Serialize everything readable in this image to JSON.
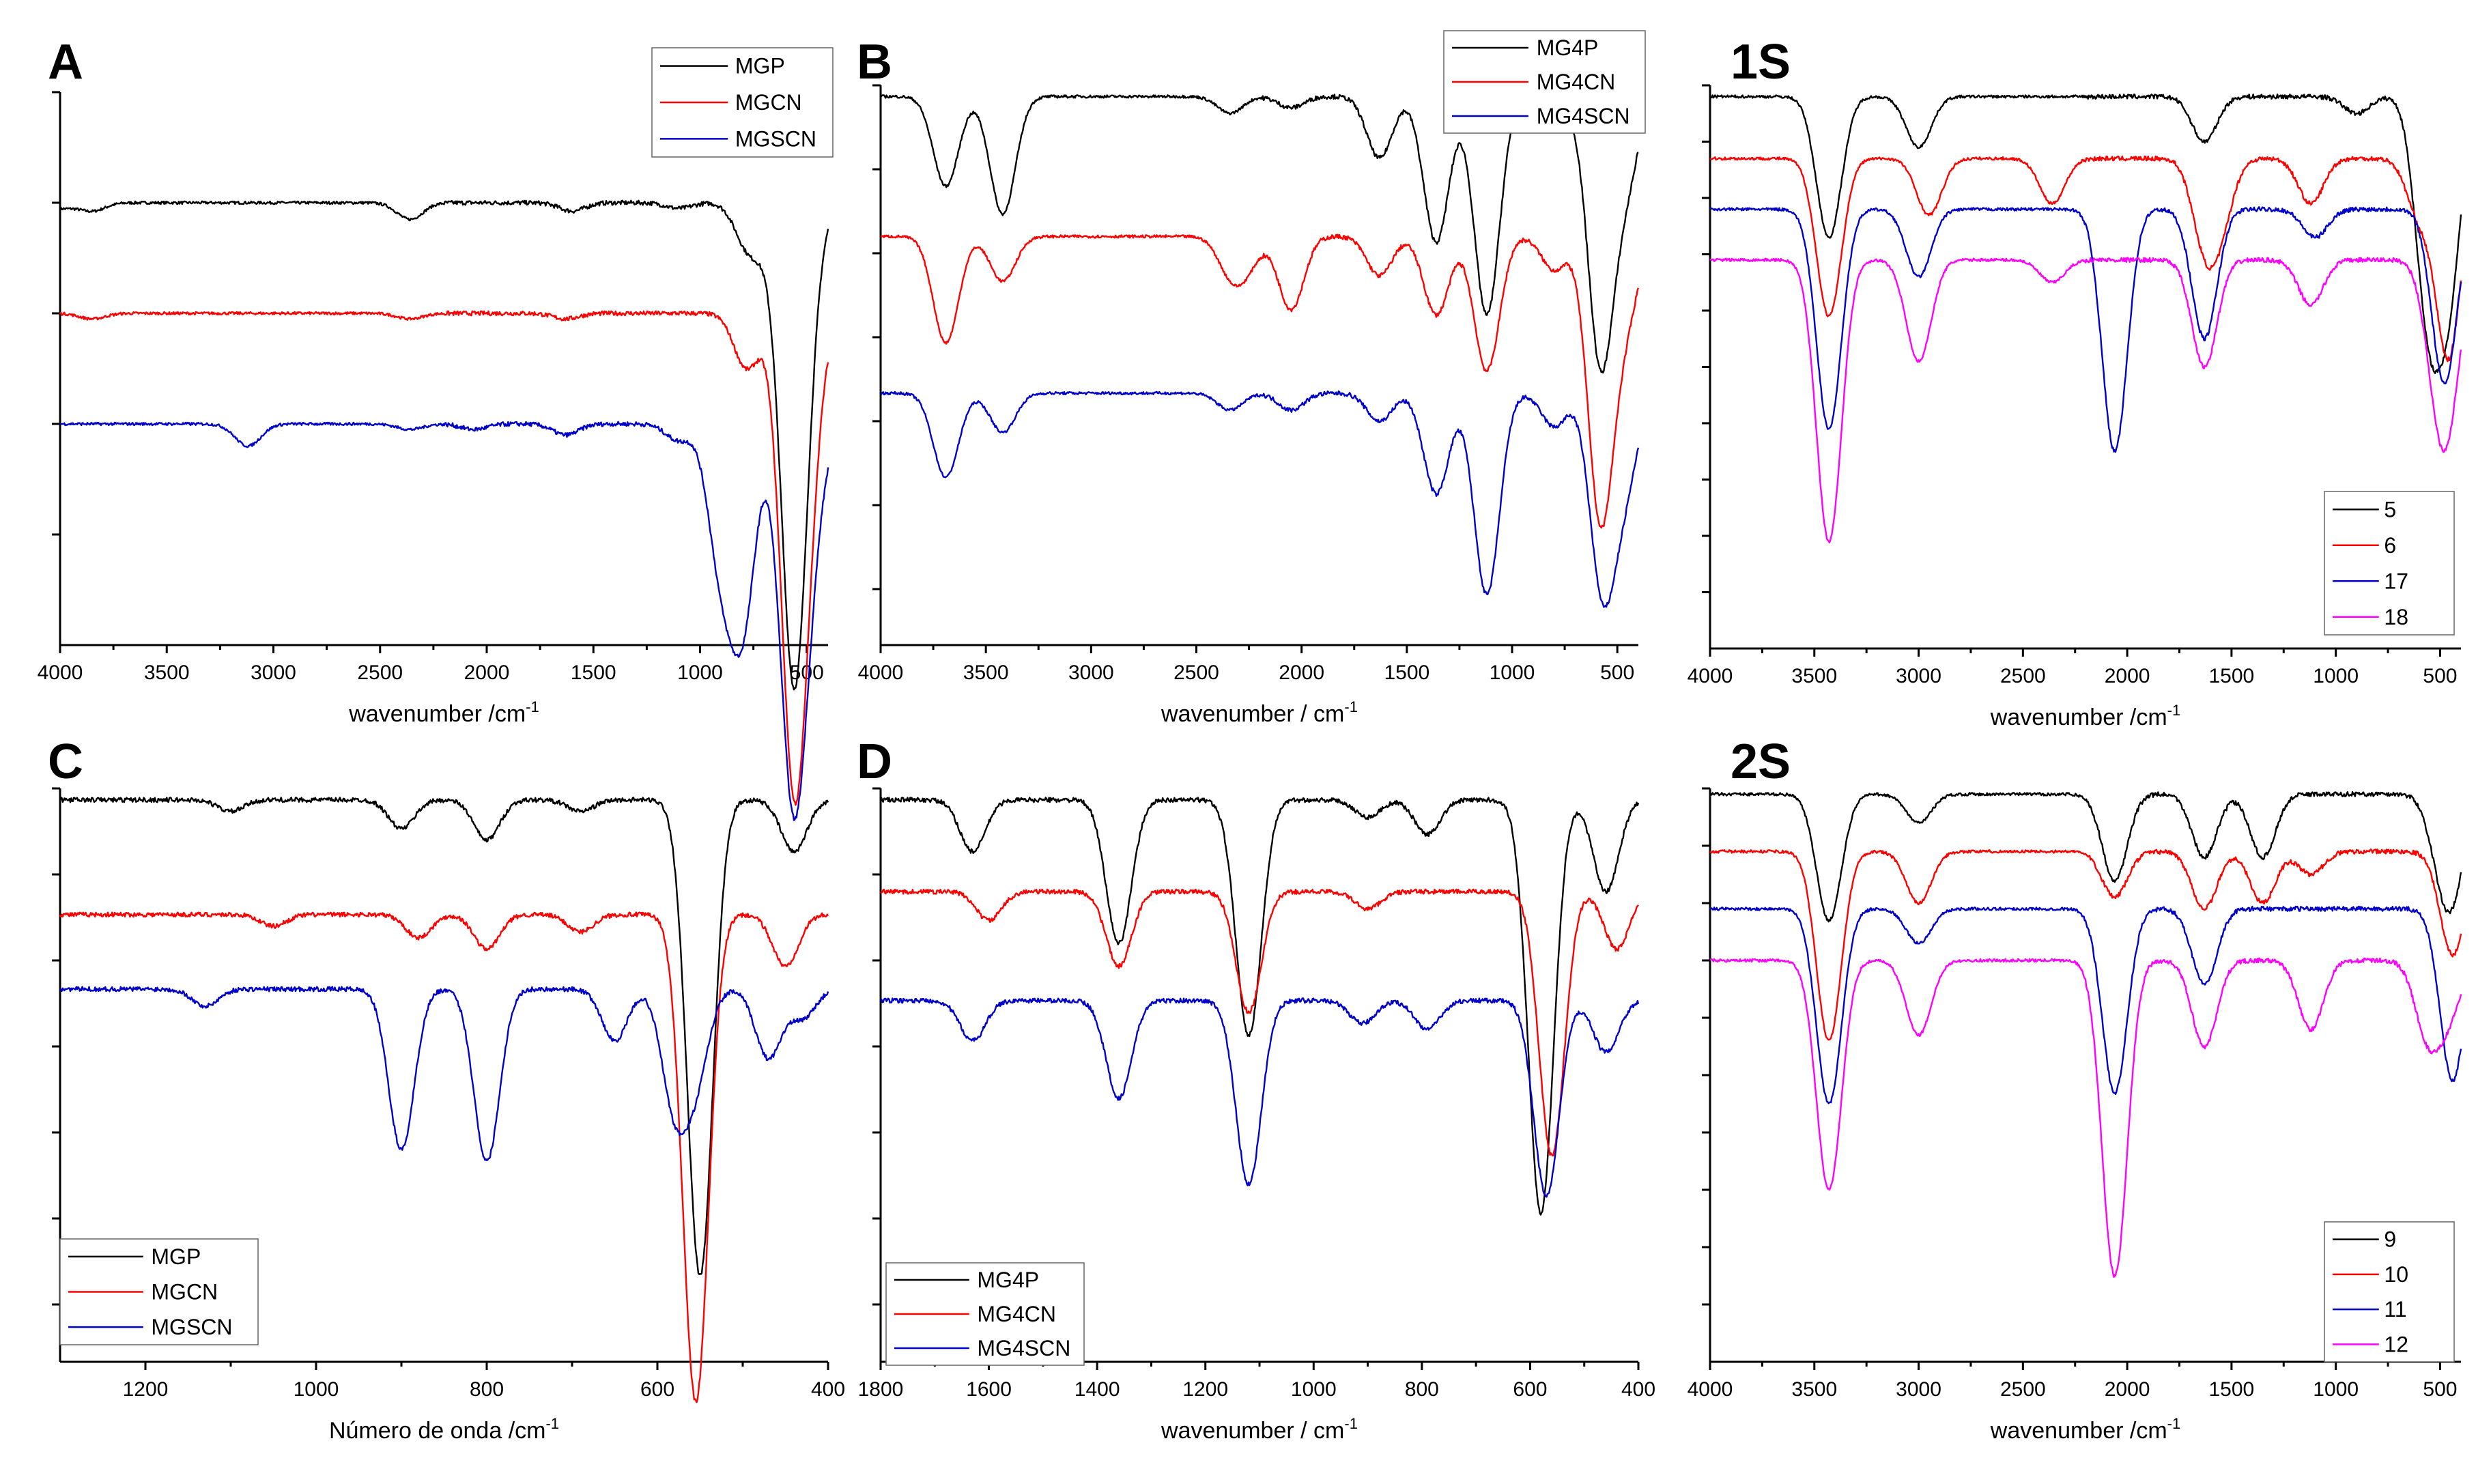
{
  "colors": {
    "black": "#000000",
    "red": "#ff0000",
    "blue": "#0000cc",
    "magenta": "#ff00ff"
  },
  "chart_data": [
    {
      "id": "A",
      "type": "line",
      "title": "A",
      "xlabel": "wavenumber /cm",
      "xlabel_sup": "-1",
      "xlim": [
        4000,
        400
      ],
      "xticks": [
        4000,
        3500,
        3000,
        2500,
        2000,
        1500,
        1000,
        500
      ],
      "ylim": [
        0,
        10
      ],
      "yticks": [
        10,
        8,
        6,
        4,
        2
      ],
      "legend": "top-right",
      "series": [
        {
          "name": "MGP",
          "color": "black",
          "base": 8,
          "bands": [
            [
              4000,
              0.1
            ],
            [
              3850,
              0.15
            ],
            [
              2360,
              0.3
            ],
            [
              1600,
              0.15
            ],
            [
              1100,
              0.1
            ],
            [
              780,
              0.7
            ],
            [
              700,
              0.5
            ],
            [
              560,
              8.5
            ],
            [
              480,
              0.6
            ]
          ]
        },
        {
          "name": "MGCN",
          "color": "red",
          "base": 6,
          "bands": [
            [
              3850,
              0.1
            ],
            [
              2360,
              0.1
            ],
            [
              1630,
              0.1
            ],
            [
              780,
              1.0
            ],
            [
              560,
              8.2
            ],
            [
              480,
              1.5
            ]
          ]
        },
        {
          "name": "MGSCN",
          "color": "blue",
          "base": 4,
          "bands": [
            [
              3120,
              0.4
            ],
            [
              2360,
              0.1
            ],
            [
              2060,
              0.1
            ],
            [
              1630,
              0.2
            ],
            [
              1100,
              0.3
            ],
            [
              905,
              2.4
            ],
            [
              800,
              3.5
            ],
            [
              565,
              6.5
            ],
            [
              480,
              1.6
            ]
          ]
        }
      ]
    },
    {
      "id": "B",
      "type": "line",
      "title": "B",
      "xlabel": "wavenumber / cm",
      "xlabel_sup": "-1",
      "xlim": [
        4000,
        400
      ],
      "xticks": [
        4000,
        3500,
        3000,
        2500,
        2000,
        1500,
        1000,
        500
      ],
      "ylim": [
        0,
        10
      ],
      "yticks": [
        10,
        8.5,
        7,
        5.5,
        4,
        2.5,
        1
      ],
      "legend": "top-center",
      "series": [
        {
          "name": "MG4P",
          "color": "black",
          "base": 9.8,
          "bands": [
            [
              3690,
              1.6
            ],
            [
              3420,
              2.1
            ],
            [
              2340,
              0.3
            ],
            [
              2050,
              0.2
            ],
            [
              1630,
              1.1
            ],
            [
              1360,
              2.6
            ],
            [
              1120,
              3.9
            ],
            [
              800,
              0.5
            ],
            [
              580,
              4.7
            ],
            [
              460,
              1.5
            ]
          ]
        },
        {
          "name": "MG4CN",
          "color": "red",
          "base": 7.3,
          "bands": [
            [
              3690,
              1.9
            ],
            [
              3420,
              0.8
            ],
            [
              2340,
              0.6
            ],
            [
              2260,
              0.5
            ],
            [
              2050,
              1.3
            ],
            [
              1630,
              0.7
            ],
            [
              1360,
              1.4
            ],
            [
              1120,
              2.4
            ],
            [
              800,
              0.6
            ],
            [
              580,
              5.0
            ],
            [
              460,
              1.4
            ]
          ]
        },
        {
          "name": "MG4SCN",
          "color": "blue",
          "base": 4.5,
          "bands": [
            [
              3690,
              1.5
            ],
            [
              3420,
              0.7
            ],
            [
              2340,
              0.3
            ],
            [
              2050,
              0.3
            ],
            [
              1630,
              0.5
            ],
            [
              1360,
              1.8
            ],
            [
              1120,
              3.6
            ],
            [
              800,
              0.6
            ],
            [
              570,
              3.5
            ],
            [
              460,
              1.5
            ]
          ]
        }
      ]
    },
    {
      "id": "1S",
      "type": "line",
      "title": "1S",
      "xlabel": "wavenumber /cm",
      "xlabel_sup": "-1",
      "xlim": [
        4000,
        400
      ],
      "xticks": [
        4000,
        3500,
        3000,
        2500,
        2000,
        1500,
        1000,
        500
      ],
      "ylim": [
        0,
        10
      ],
      "yticks": [
        10,
        9,
        8,
        7,
        6,
        5,
        4,
        3,
        2,
        1
      ],
      "legend": "bottom-right",
      "series": [
        {
          "name": "5",
          "color": "black",
          "base": 9.8,
          "bands": [
            [
              3430,
              2.5
            ],
            [
              3000,
              0.9
            ],
            [
              1630,
              0.8
            ],
            [
              900,
              0.3
            ],
            [
              560,
              3.6
            ],
            [
              460,
              3.3
            ]
          ]
        },
        {
          "name": "6",
          "color": "red",
          "base": 8.7,
          "bands": [
            [
              3430,
              2.8
            ],
            [
              2950,
              1.0
            ],
            [
              2360,
              0.8
            ],
            [
              1630,
              1.4
            ],
            [
              1550,
              1.0
            ],
            [
              1120,
              0.8
            ],
            [
              600,
              1.0
            ],
            [
              460,
              3.5
            ]
          ]
        },
        {
          "name": "17",
          "color": "blue",
          "base": 7.8,
          "bands": [
            [
              3430,
              3.9
            ],
            [
              3000,
              1.2
            ],
            [
              2060,
              4.3
            ],
            [
              1630,
              2.3
            ],
            [
              1100,
              0.5
            ],
            [
              480,
              3.1
            ]
          ]
        },
        {
          "name": "18",
          "color": "magenta",
          "base": 6.9,
          "bands": [
            [
              3430,
              5.0
            ],
            [
              3000,
              1.8
            ],
            [
              2360,
              0.4
            ],
            [
              1630,
              1.9
            ],
            [
              1120,
              0.8
            ],
            [
              520,
              1.5
            ],
            [
              460,
              2.3
            ]
          ]
        }
      ]
    },
    {
      "id": "C",
      "type": "line",
      "title": "C",
      "xlabel": "Número de onda /cm",
      "xlabel_sup": "-1",
      "xlim": [
        1300,
        400
      ],
      "xticks": [
        1200,
        1000,
        800,
        600,
        400
      ],
      "ylim": [
        0,
        10
      ],
      "yticks": [
        10,
        8.5,
        7,
        5.5,
        4,
        2.5,
        1
      ],
      "legend": "bottom-left",
      "series": [
        {
          "name": "MGP",
          "color": "black",
          "base": 9.8,
          "bands": [
            [
              1100,
              0.2
            ],
            [
              900,
              0.5
            ],
            [
              800,
              0.7
            ],
            [
              690,
              0.2
            ],
            [
              550,
              8.3
            ],
            [
              440,
              0.9
            ]
          ]
        },
        {
          "name": "MGCN",
          "color": "red",
          "base": 7.8,
          "bands": [
            [
              1050,
              0.2
            ],
            [
              880,
              0.4
            ],
            [
              800,
              0.6
            ],
            [
              690,
              0.3
            ],
            [
              555,
              8.5
            ],
            [
              450,
              0.9
            ]
          ]
        },
        {
          "name": "MGSCN",
          "color": "blue",
          "base": 6.5,
          "bands": [
            [
              1130,
              0.3
            ],
            [
              900,
              2.8
            ],
            [
              800,
              3.0
            ],
            [
              650,
              0.9
            ],
            [
              580,
              2.0
            ],
            [
              555,
              1.5
            ],
            [
              470,
              1.2
            ],
            [
              430,
              0.5
            ]
          ]
        }
      ]
    },
    {
      "id": "D",
      "type": "line",
      "title": "D",
      "xlabel": "wavenumber / cm",
      "xlabel_sup": "-1",
      "xlim": [
        1800,
        400
      ],
      "xticks": [
        1800,
        1600,
        1400,
        1200,
        1000,
        800,
        600,
        400
      ],
      "ylim": [
        0,
        10
      ],
      "yticks": [
        10,
        8.5,
        7,
        5.5,
        4,
        2.5,
        1
      ],
      "legend": "bottom-left",
      "series": [
        {
          "name": "MG4P",
          "color": "black",
          "base": 9.8,
          "bands": [
            [
              1630,
              0.9
            ],
            [
              1360,
              2.5
            ],
            [
              1120,
              4.1
            ],
            [
              900,
              0.3
            ],
            [
              790,
              0.6
            ],
            [
              580,
              7.2
            ],
            [
              460,
              1.6
            ]
          ]
        },
        {
          "name": "MG4CN",
          "color": "red",
          "base": 8.2,
          "bands": [
            [
              1600,
              0.5
            ],
            [
              1360,
              1.3
            ],
            [
              1120,
              2.1
            ],
            [
              900,
              0.3
            ],
            [
              560,
              4.6
            ],
            [
              440,
              1.0
            ]
          ]
        },
        {
          "name": "MG4SCN",
          "color": "blue",
          "base": 6.3,
          "bands": [
            [
              1630,
              0.7
            ],
            [
              1360,
              1.7
            ],
            [
              1120,
              3.2
            ],
            [
              910,
              0.4
            ],
            [
              790,
              0.5
            ],
            [
              570,
              3.4
            ],
            [
              460,
              0.9
            ]
          ]
        }
      ]
    },
    {
      "id": "2S",
      "type": "line",
      "title": "2S",
      "xlabel": "wavenumber /cm",
      "xlabel_sup": "-1",
      "xlim": [
        4000,
        400
      ],
      "xticks": [
        4000,
        3500,
        3000,
        2500,
        2000,
        1500,
        1000,
        500
      ],
      "ylim": [
        0,
        10
      ],
      "yticks": [
        10,
        9,
        8,
        7,
        6,
        5,
        4,
        3,
        2,
        1
      ],
      "legend": "bottom-right",
      "series": [
        {
          "name": "9",
          "color": "black",
          "base": 9.9,
          "bands": [
            [
              3430,
              2.2
            ],
            [
              3000,
              0.5
            ],
            [
              2060,
              1.5
            ],
            [
              1630,
              1.1
            ],
            [
              1350,
              1.1
            ],
            [
              500,
              0.8
            ],
            [
              440,
              1.5
            ]
          ]
        },
        {
          "name": "10",
          "color": "red",
          "base": 8.9,
          "bands": [
            [
              3430,
              3.3
            ],
            [
              3000,
              0.9
            ],
            [
              2060,
              0.8
            ],
            [
              1630,
              1.0
            ],
            [
              1350,
              0.9
            ],
            [
              1120,
              0.4
            ],
            [
              440,
              1.8
            ]
          ]
        },
        {
          "name": "11",
          "color": "blue",
          "base": 7.9,
          "bands": [
            [
              3430,
              3.4
            ],
            [
              3000,
              0.6
            ],
            [
              2060,
              3.2
            ],
            [
              1630,
              1.3
            ],
            [
              440,
              3.0
            ]
          ]
        },
        {
          "name": "12",
          "color": "magenta",
          "base": 7.0,
          "bands": [
            [
              3430,
              4.0
            ],
            [
              3000,
              1.3
            ],
            [
              2060,
              5.5
            ],
            [
              1630,
              1.5
            ],
            [
              1120,
              1.2
            ],
            [
              560,
              1.3
            ],
            [
              460,
              0.9
            ]
          ]
        }
      ]
    }
  ]
}
